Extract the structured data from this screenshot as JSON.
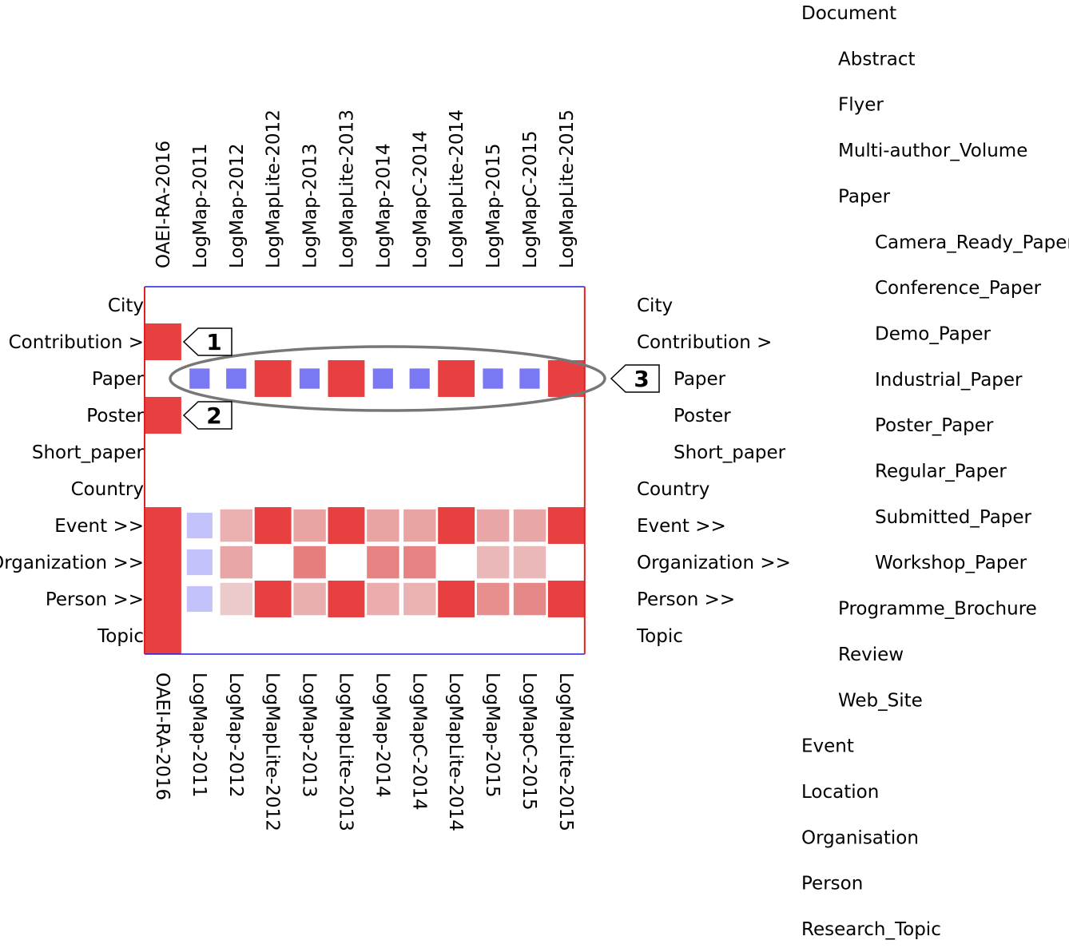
{
  "chart_data": {
    "type": "heatmap",
    "columns": [
      "OAEI-RA-2016",
      "LogMap-2011",
      "LogMap-2012",
      "LogMapLite-2012",
      "LogMap-2013",
      "LogMapLite-2013",
      "LogMap-2014",
      "LogMapC-2014",
      "LogMapLite-2014",
      "LogMap-2015",
      "LogMapC-2015",
      "LogMapLite-2015"
    ],
    "rows": [
      "City",
      "Contribution >",
      "Paper",
      "Poster",
      "Short_paper",
      "Country",
      "Event >>",
      "Organization >>",
      "Person >>",
      "Topic"
    ],
    "left_row_labels": [
      "City",
      "Contribution >",
      "Paper",
      "Poster",
      "Short_paper",
      "Country",
      "Event >>",
      "Organization >>",
      "Person >>",
      "Topic"
    ],
    "right_row_labels": [
      "City",
      "Contribution >",
      "Paper",
      "Poster",
      "Short_paper",
      "Country",
      "Event >>",
      "Organization >>",
      "Person >>",
      "Topic"
    ],
    "right_row_indent": [
      0,
      0,
      1,
      1,
      1,
      0,
      0,
      0,
      0,
      0
    ],
    "cells": [
      {
        "row": 1,
        "col": 0,
        "color": "#e84040",
        "size": 1.0
      },
      {
        "row": 3,
        "col": 0,
        "color": "#e84040",
        "size": 1.0
      },
      {
        "row": 2,
        "col": 1,
        "color": "#7a78f2",
        "size": 0.55
      },
      {
        "row": 2,
        "col": 2,
        "color": "#7a78f2",
        "size": 0.55
      },
      {
        "row": 2,
        "col": 3,
        "color": "#e84040",
        "size": 1.0
      },
      {
        "row": 2,
        "col": 4,
        "color": "#7a78f2",
        "size": 0.55
      },
      {
        "row": 2,
        "col": 5,
        "color": "#e84040",
        "size": 1.0
      },
      {
        "row": 2,
        "col": 6,
        "color": "#7a78f2",
        "size": 0.55
      },
      {
        "row": 2,
        "col": 7,
        "color": "#7a78f2",
        "size": 0.55
      },
      {
        "row": 2,
        "col": 8,
        "color": "#e84040",
        "size": 1.0
      },
      {
        "row": 2,
        "col": 9,
        "color": "#7a78f2",
        "size": 0.55
      },
      {
        "row": 2,
        "col": 10,
        "color": "#7a78f2",
        "size": 0.55
      },
      {
        "row": 2,
        "col": 11,
        "color": "#e84040",
        "size": 1.0
      },
      {
        "row": 6,
        "col": 0,
        "color": "#e84040",
        "size": 1.0
      },
      {
        "row": 7,
        "col": 0,
        "color": "#e84040",
        "size": 1.0
      },
      {
        "row": 8,
        "col": 0,
        "color": "#e84040",
        "size": 1.0
      },
      {
        "row": 9,
        "col": 0,
        "color": "#e84040",
        "size": 1.0
      },
      {
        "row": 6,
        "col": 1,
        "color": "#c4c2fa",
        "size": 0.7
      },
      {
        "row": 7,
        "col": 1,
        "color": "#c4c2fa",
        "size": 0.7
      },
      {
        "row": 8,
        "col": 1,
        "color": "#c4c2fa",
        "size": 0.7
      },
      {
        "row": 6,
        "col": 2,
        "color": "#ebb0b0",
        "size": 0.88
      },
      {
        "row": 7,
        "col": 2,
        "color": "#e9a6a6",
        "size": 0.88
      },
      {
        "row": 8,
        "col": 2,
        "color": "#eacaca",
        "size": 0.88
      },
      {
        "row": 6,
        "col": 3,
        "color": "#e84040",
        "size": 1.0
      },
      {
        "row": 8,
        "col": 3,
        "color": "#e84040",
        "size": 1.0
      },
      {
        "row": 6,
        "col": 4,
        "color": "#e9a3a3",
        "size": 0.88
      },
      {
        "row": 7,
        "col": 4,
        "color": "#e77e7e",
        "size": 0.88
      },
      {
        "row": 8,
        "col": 4,
        "color": "#e9aeae",
        "size": 0.88
      },
      {
        "row": 6,
        "col": 5,
        "color": "#e84040",
        "size": 1.0
      },
      {
        "row": 8,
        "col": 5,
        "color": "#e84040",
        "size": 1.0
      },
      {
        "row": 6,
        "col": 6,
        "color": "#e9a3a3",
        "size": 0.88
      },
      {
        "row": 7,
        "col": 6,
        "color": "#e78282",
        "size": 0.88
      },
      {
        "row": 8,
        "col": 6,
        "color": "#eaacac",
        "size": 0.88
      },
      {
        "row": 6,
        "col": 7,
        "color": "#e9a3a3",
        "size": 0.88
      },
      {
        "row": 7,
        "col": 7,
        "color": "#e78282",
        "size": 0.88
      },
      {
        "row": 8,
        "col": 7,
        "color": "#eab2b2",
        "size": 0.88
      },
      {
        "row": 6,
        "col": 8,
        "color": "#e84040",
        "size": 1.0
      },
      {
        "row": 8,
        "col": 8,
        "color": "#e84040",
        "size": 1.0
      },
      {
        "row": 6,
        "col": 9,
        "color": "#e9a6a6",
        "size": 0.88
      },
      {
        "row": 7,
        "col": 9,
        "color": "#eab8b8",
        "size": 0.88
      },
      {
        "row": 8,
        "col": 9,
        "color": "#e78e8e",
        "size": 0.88
      },
      {
        "row": 6,
        "col": 10,
        "color": "#e9a6a6",
        "size": 0.88
      },
      {
        "row": 7,
        "col": 10,
        "color": "#eab8b8",
        "size": 0.88
      },
      {
        "row": 8,
        "col": 10,
        "color": "#e78888",
        "size": 0.88
      },
      {
        "row": 6,
        "col": 11,
        "color": "#e84040",
        "size": 1.0
      },
      {
        "row": 8,
        "col": 11,
        "color": "#e84040",
        "size": 1.0
      }
    ],
    "callouts": [
      {
        "label": "1",
        "row": 1,
        "side": "left"
      },
      {
        "label": "2",
        "row": 3,
        "side": "left"
      },
      {
        "label": "3",
        "row": 2,
        "side": "right"
      }
    ],
    "highlighted_row": 2,
    "legend": "none",
    "grid": false
  },
  "class_tree": {
    "items": [
      {
        "label": "Document",
        "level": 0
      },
      {
        "label": "Abstract",
        "level": 1
      },
      {
        "label": "Flyer",
        "level": 1
      },
      {
        "label": "Multi-author_Volume",
        "level": 1
      },
      {
        "label": "Paper",
        "level": 1
      },
      {
        "label": "Camera_Ready_Paper",
        "level": 2
      },
      {
        "label": "Conference_Paper",
        "level": 2
      },
      {
        "label": "Demo_Paper",
        "level": 2
      },
      {
        "label": "Industrial_Paper",
        "level": 2
      },
      {
        "label": "Poster_Paper",
        "level": 2
      },
      {
        "label": "Regular_Paper",
        "level": 2
      },
      {
        "label": "Submitted_Paper",
        "level": 2
      },
      {
        "label": "Workshop_Paper",
        "level": 2
      },
      {
        "label": "Programme_Brochure",
        "level": 1
      },
      {
        "label": "Review",
        "level": 1
      },
      {
        "label": "Web_Site",
        "level": 1
      },
      {
        "label": "Event",
        "level": 0
      },
      {
        "label": "Location",
        "level": 0
      },
      {
        "label": "Organisation",
        "level": 0
      },
      {
        "label": "Person",
        "level": 0
      },
      {
        "label": "Research_Topic",
        "level": 0
      }
    ]
  },
  "colors": {
    "frame_red": "#e02020",
    "frame_blue": "#2020e0",
    "ellipse": "#777777"
  }
}
